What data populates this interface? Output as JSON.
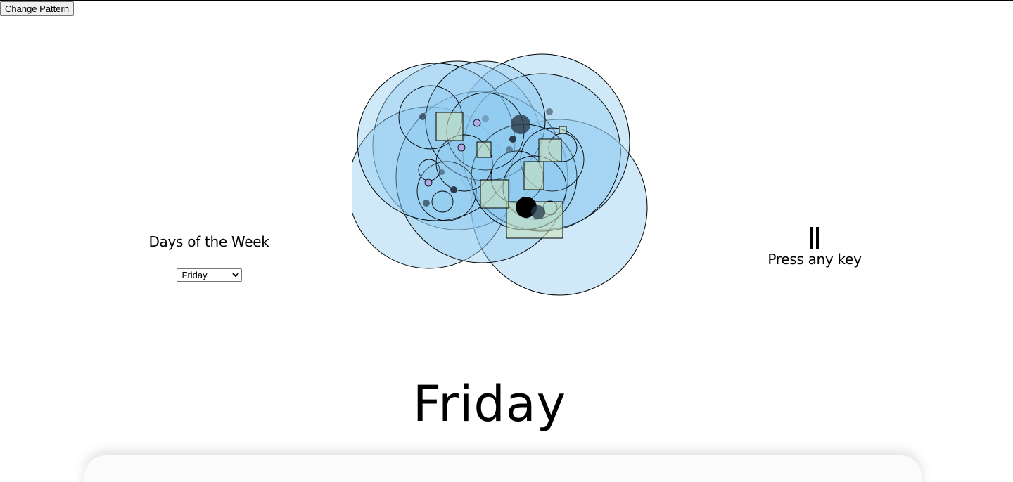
{
  "toolbar": {
    "change_pattern_label": "Change Pattern"
  },
  "left_panel": {
    "title": "Days of the Week",
    "select": {
      "selected": "Friday",
      "options": [
        "Friday"
      ]
    }
  },
  "right_panel": {
    "pause_icon": "pause-icon",
    "prompt": "Press any key"
  },
  "main": {
    "day_display": "Friday"
  },
  "colors": {
    "circle_fill": "#8fcaf0",
    "circle_stroke": "#000000",
    "square_fill": "#cfe3b8",
    "dot_dark": "#2a3a48",
    "dot_purple": "#b9a6e6"
  }
}
